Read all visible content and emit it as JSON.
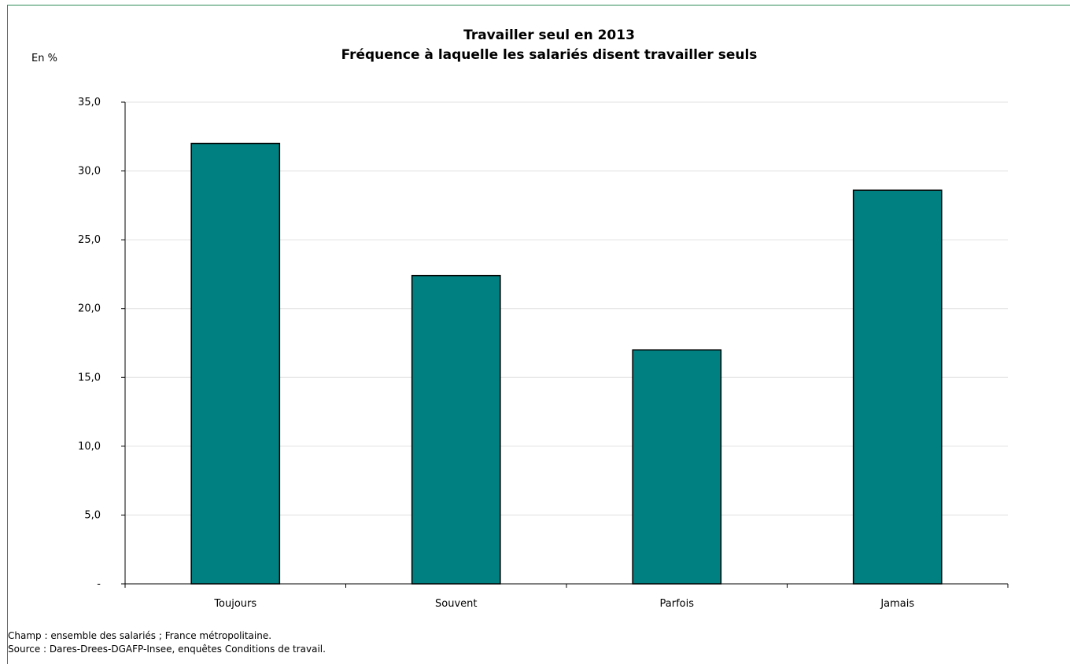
{
  "chart_data": {
    "type": "bar",
    "title": "Travailler seul en 2013",
    "subtitle": "Fréquence à laquelle les salariés disent travailler seuls",
    "ylabel": "En %",
    "xlabel": "",
    "categories": [
      "Toujours",
      "Souvent",
      "Parfois",
      "Jamais"
    ],
    "values": [
      32.0,
      22.4,
      17.0,
      28.6
    ],
    "ylim": [
      0,
      35
    ],
    "yticks": [
      "-",
      "5,0",
      "10,0",
      "15,0",
      "20,0",
      "25,0",
      "30,0",
      "35,0"
    ],
    "ytick_values": [
      0,
      5,
      10,
      15,
      20,
      25,
      30,
      35
    ],
    "grid": true,
    "legend": "none",
    "bar_color": "#008080"
  },
  "notes": {
    "champ": "Champ : ensemble des salariés ; France métropolitaine.",
    "source": "Source : Dares-Drees-DGAFP-Insee, enquêtes Conditions de travail."
  },
  "colors": {
    "frame": "#2e8b57",
    "grid": "#e0e0e0",
    "bar_fill": "#008080",
    "bar_stroke": "#000000"
  }
}
